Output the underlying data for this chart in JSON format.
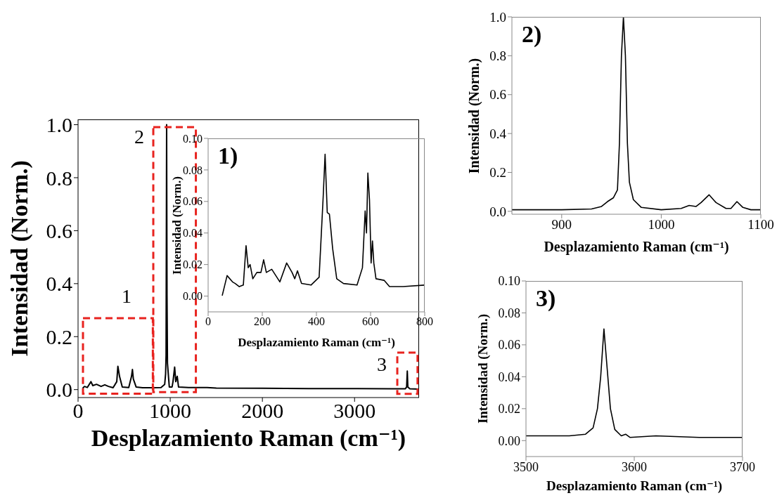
{
  "chart_data": [
    {
      "type": "line",
      "xlabel": "Desplazamiento Raman (cm⁻¹)",
      "ylabel": "Intensidad (Norm.)",
      "xlim": [
        0,
        3700
      ],
      "ylim": [
        -0.03,
        1.02
      ],
      "xticks": [
        0,
        1000,
        2000,
        3000
      ],
      "yticks": [
        {
          "value": 0,
          "label": "0.0"
        },
        {
          "value": 0.2,
          "label": "0.2"
        },
        {
          "value": 0.4,
          "label": "0.4"
        },
        {
          "value": 0.6,
          "label": "0.6"
        },
        {
          "value": 0.8,
          "label": "0.8"
        },
        {
          "value": 1,
          "label": "1.0"
        }
      ],
      "x": [
        50,
        70,
        100,
        140,
        160,
        200,
        250,
        290,
        330,
        380,
        420,
        432,
        450,
        480,
        550,
        580,
        590,
        600,
        610,
        630,
        700,
        800,
        900,
        940,
        950,
        955,
        961,
        965,
        970,
        990,
        1020,
        1030,
        1048,
        1060,
        1076,
        1090,
        1200,
        1400,
        1500,
        2000,
        2500,
        3000,
        3400,
        3550,
        3565,
        3572,
        3578,
        3600,
        3700
      ],
      "series": [
        {
          "color": "#000000",
          "values": [
            0.005,
            0.012,
            0.008,
            0.03,
            0.015,
            0.02,
            0.012,
            0.018,
            0.012,
            0.007,
            0.03,
            0.088,
            0.05,
            0.01,
            0.008,
            0.05,
            0.076,
            0.04,
            0.03,
            0.01,
            0.007,
            0.007,
            0.008,
            0.02,
            0.06,
            0.13,
            1.0,
            0.36,
            0.1,
            0.01,
            0.01,
            0.03,
            0.085,
            0.03,
            0.05,
            0.01,
            0.008,
            0.008,
            0.006,
            0.005,
            0.004,
            0.004,
            0.003,
            0.003,
            0.01,
            0.07,
            0.01,
            0.003,
            0.002
          ]
        }
      ],
      "annotations": [
        "1",
        "2",
        "3"
      ]
    },
    {
      "type": "line",
      "xlabel": "Desplazamiento Raman (cm⁻¹)",
      "ylabel": "Intensidad (Norm.)",
      "xlim": [
        0,
        800
      ],
      "ylim": [
        -0.01,
        0.1
      ],
      "xticks": [
        0,
        200,
        400,
        600,
        800
      ],
      "yticks": [
        {
          "value": 0,
          "label": "0.00"
        },
        {
          "value": 0.02,
          "label": "0.02"
        },
        {
          "value": 0.04,
          "label": "0.04"
        },
        {
          "value": 0.06,
          "label": "0.06"
        },
        {
          "value": 0.08,
          "label": "0.08"
        },
        {
          "value": 0.1,
          "label": "0.10"
        }
      ],
      "x": [
        52,
        70,
        90,
        100,
        115,
        130,
        140,
        148,
        155,
        165,
        180,
        195,
        205,
        215,
        235,
        265,
        290,
        310,
        320,
        330,
        345,
        380,
        410,
        425,
        432,
        440,
        448,
        460,
        475,
        500,
        550,
        570,
        580,
        585,
        590,
        596,
        602,
        607,
        612,
        620,
        650,
        670,
        720,
        800
      ],
      "series": [
        {
          "color": "#000000",
          "values": [
            0.0003,
            0.013,
            0.009,
            0.008,
            0.006,
            0.007,
            0.032,
            0.018,
            0.02,
            0.011,
            0.015,
            0.015,
            0.023,
            0.015,
            0.017,
            0.009,
            0.021,
            0.015,
            0.011,
            0.016,
            0.008,
            0.007,
            0.012,
            0.063,
            0.09,
            0.053,
            0.052,
            0.03,
            0.011,
            0.008,
            0.007,
            0.018,
            0.054,
            0.04,
            0.078,
            0.061,
            0.021,
            0.035,
            0.021,
            0.011,
            0.01,
            0.006,
            0.006,
            0.007
          ]
        }
      ],
      "annotations": [
        "1)"
      ]
    },
    {
      "type": "line",
      "xlabel": "Desplazamiento Raman (cm⁻¹)",
      "ylabel": "Intensidad (Norm.)",
      "xlim": [
        850,
        1100
      ],
      "ylim": [
        -0.015,
        1.0
      ],
      "xticks": [
        900,
        1000,
        1100
      ],
      "yticks": [
        {
          "value": 0,
          "label": "0.0"
        },
        {
          "value": 0.2,
          "label": "0.2"
        },
        {
          "value": 0.4,
          "label": "0.4"
        },
        {
          "value": 0.6,
          "label": "0.6"
        },
        {
          "value": 0.8,
          "label": "0.8"
        },
        {
          "value": 1,
          "label": "1.0"
        }
      ],
      "x": [
        850,
        900,
        930,
        940,
        946,
        952,
        956,
        958,
        960,
        962,
        964,
        966,
        968,
        972,
        980,
        1000,
        1020,
        1028,
        1035,
        1040,
        1048,
        1055,
        1065,
        1070,
        1076,
        1082,
        1090,
        1100
      ],
      "series": [
        {
          "color": "#000000",
          "values": [
            0.008,
            0.008,
            0.012,
            0.025,
            0.05,
            0.07,
            0.11,
            0.35,
            0.8,
            1.0,
            0.8,
            0.35,
            0.15,
            0.06,
            0.02,
            0.008,
            0.015,
            0.03,
            0.025,
            0.045,
            0.085,
            0.045,
            0.015,
            0.015,
            0.05,
            0.02,
            0.008,
            0.008
          ]
        }
      ],
      "annotations": [
        "2)"
      ]
    },
    {
      "type": "line",
      "xlabel": "Desplazamiento Raman (cm⁻¹)",
      "ylabel": "Intensidad (Norm.)",
      "xlim": [
        3500,
        3700
      ],
      "ylim": [
        -0.01,
        0.1
      ],
      "xticks": [
        3500,
        3600,
        3700
      ],
      "yticks": [
        {
          "value": 0,
          "label": "0.00"
        },
        {
          "value": 0.02,
          "label": "0.02"
        },
        {
          "value": 0.04,
          "label": "0.04"
        },
        {
          "value": 0.06,
          "label": "0.06"
        },
        {
          "value": 0.08,
          "label": "0.08"
        },
        {
          "value": 0.1,
          "label": "0.10"
        }
      ],
      "x": [
        3500,
        3540,
        3555,
        3562,
        3566,
        3569,
        3572,
        3575,
        3578,
        3582,
        3588,
        3592,
        3596,
        3620,
        3660,
        3700
      ],
      "series": [
        {
          "color": "#000000",
          "values": [
            0.003,
            0.003,
            0.004,
            0.008,
            0.02,
            0.04,
            0.07,
            0.045,
            0.02,
            0.007,
            0.003,
            0.004,
            0.002,
            0.003,
            0.002,
            0.002
          ]
        }
      ],
      "annotations": [
        "3)"
      ]
    }
  ]
}
